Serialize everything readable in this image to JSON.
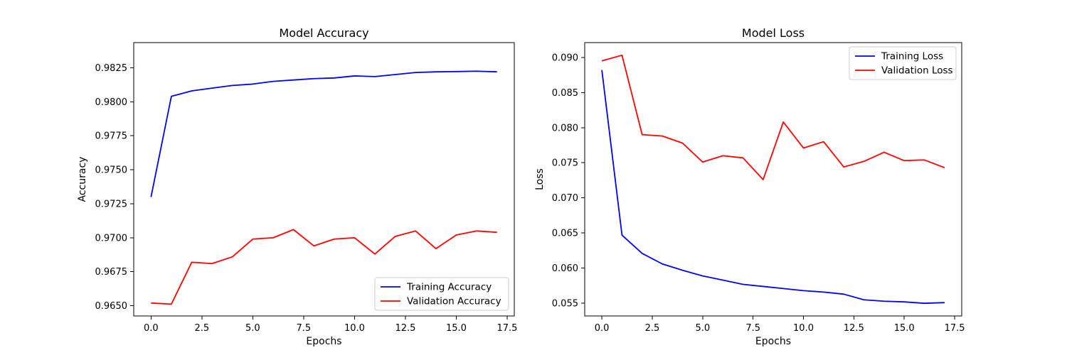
{
  "chart_data": [
    {
      "type": "line",
      "title": "Model Accuracy",
      "xlabel": "Epochs",
      "ylabel": "Accuracy",
      "xlim": [
        -0.85,
        17.85
      ],
      "ylim": [
        0.96425,
        0.98435
      ],
      "xticks": [
        "0.0",
        "2.5",
        "5.0",
        "7.5",
        "10.0",
        "12.5",
        "15.0",
        "17.5"
      ],
      "yticks": [
        "0.9650",
        "0.9675",
        "0.9700",
        "0.9725",
        "0.9750",
        "0.9775",
        "0.9800",
        "0.9825"
      ],
      "grid": false,
      "legend_position": "lower-right",
      "x": [
        0,
        1,
        2,
        3,
        4,
        5,
        6,
        7,
        8,
        9,
        10,
        11,
        12,
        13,
        14,
        15,
        16,
        17
      ],
      "series": [
        {
          "name": "Training Accuracy",
          "color": "#0000ff",
          "values": [
            0.973,
            0.9804,
            0.9808,
            0.981,
            0.9812,
            0.9813,
            0.9815,
            0.9816,
            0.9817,
            0.98175,
            0.9819,
            0.98185,
            0.982,
            0.98215,
            0.9822,
            0.98222,
            0.98225,
            0.9822
          ]
        },
        {
          "name": "Validation Accuracy",
          "color": "#ff0000",
          "values": [
            0.9652,
            0.96512,
            0.9682,
            0.9681,
            0.9686,
            0.9699,
            0.97,
            0.9706,
            0.9694,
            0.9699,
            0.97,
            0.9688,
            0.9701,
            0.9705,
            0.9692,
            0.9702,
            0.9705,
            0.9704
          ]
        }
      ]
    },
    {
      "type": "line",
      "title": "Model Loss",
      "xlabel": "Epochs",
      "ylabel": "Loss",
      "xlim": [
        -0.85,
        17.85
      ],
      "ylim": [
        0.0532,
        0.0921
      ],
      "xticks": [
        "0.0",
        "2.5",
        "5.0",
        "7.5",
        "10.0",
        "12.5",
        "15.0",
        "17.5"
      ],
      "yticks": [
        "0.055",
        "0.060",
        "0.065",
        "0.070",
        "0.075",
        "0.080",
        "0.085",
        "0.090"
      ],
      "grid": false,
      "legend_position": "upper-right",
      "x": [
        0,
        1,
        2,
        3,
        4,
        5,
        6,
        7,
        8,
        9,
        10,
        11,
        12,
        13,
        14,
        15,
        16,
        17
      ],
      "series": [
        {
          "name": "Training Loss",
          "color": "#0000ff",
          "values": [
            0.0882,
            0.0647,
            0.0621,
            0.0606,
            0.0597,
            0.0589,
            0.0583,
            0.0577,
            0.0574,
            0.0571,
            0.0568,
            0.0566,
            0.0563,
            0.0555,
            0.0553,
            0.0552,
            0.055,
            0.0551
          ]
        },
        {
          "name": "Validation Loss",
          "color": "#ff0000",
          "values": [
            0.0895,
            0.0903,
            0.079,
            0.0788,
            0.0778,
            0.0751,
            0.076,
            0.0757,
            0.0726,
            0.0808,
            0.0771,
            0.078,
            0.0744,
            0.0752,
            0.0765,
            0.0753,
            0.0754,
            0.0743
          ]
        }
      ]
    }
  ]
}
